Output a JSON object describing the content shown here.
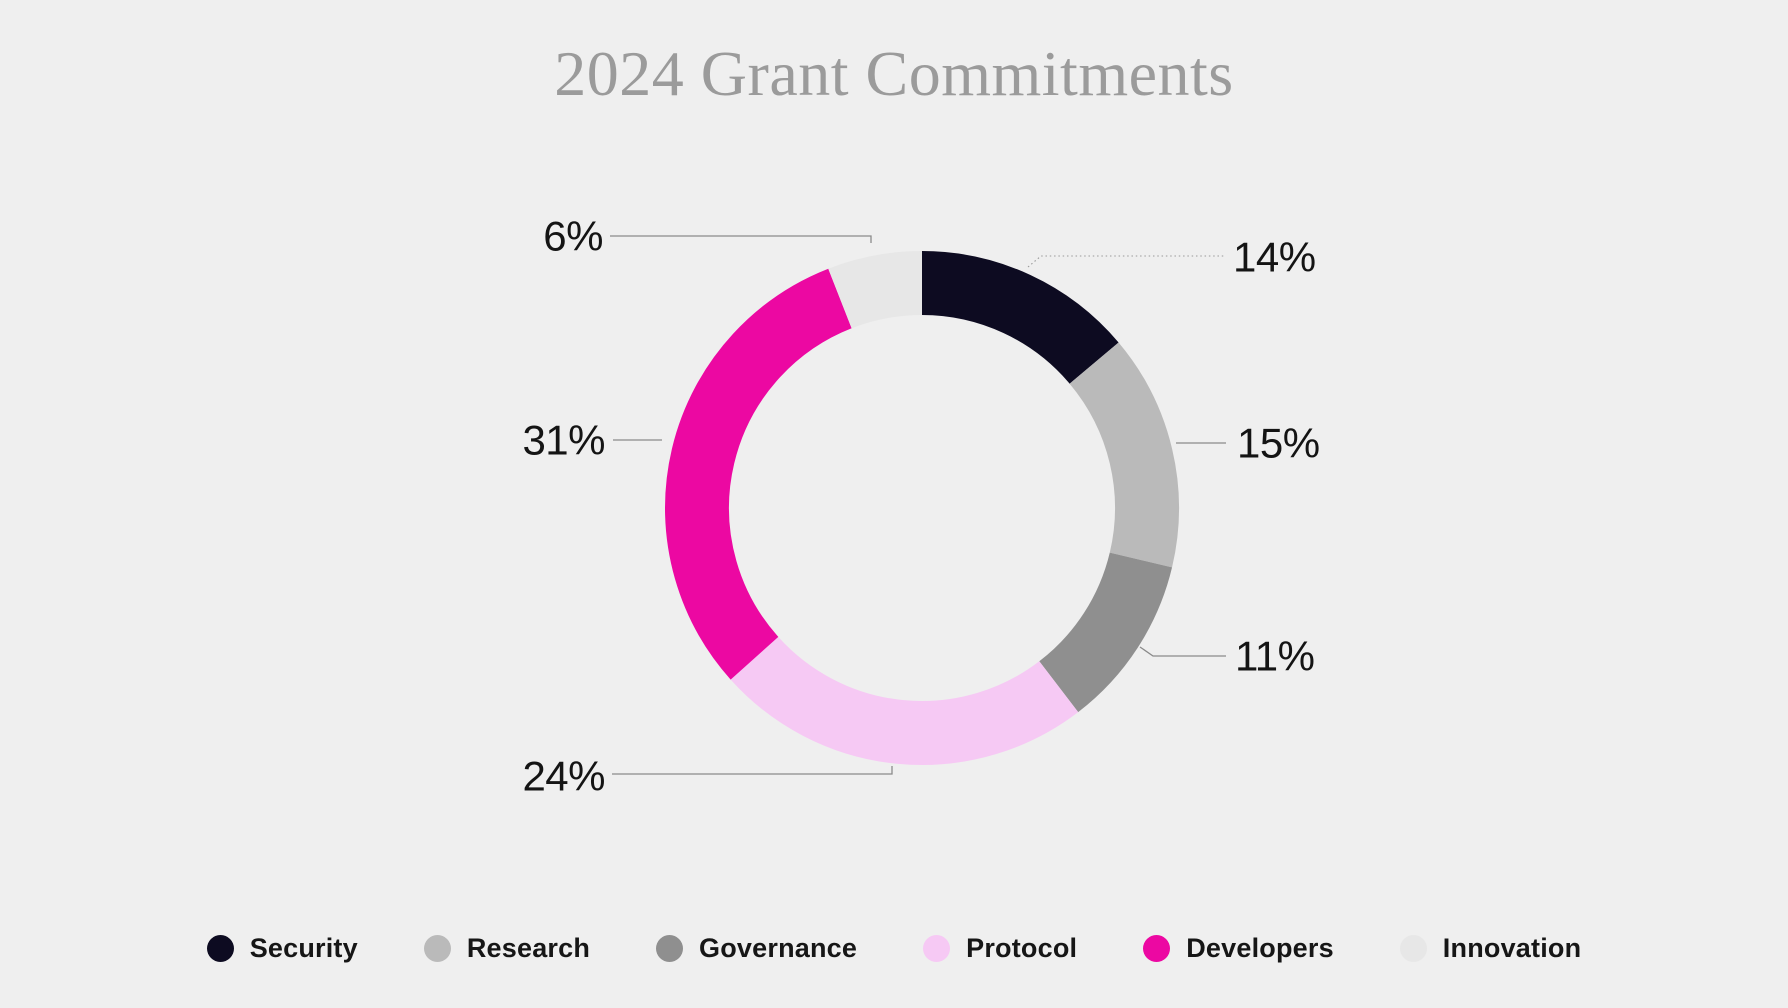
{
  "chart_data": {
    "type": "donut",
    "title": "2024 Grant Commitments",
    "labels_format": "percent",
    "legend_position": "bottom",
    "direction": "clockwise",
    "start_angle_deg": 0,
    "donut_hole_ratio": 0.75,
    "background_color": "#efefef",
    "title_color": "#9b9b9b",
    "label_color": "#141414",
    "leader_line_color": "#8a8a8a",
    "series": [
      {
        "name": "Security",
        "value": 14,
        "percent_label": "14%",
        "color": "#0d0b21"
      },
      {
        "name": "Research",
        "value": 15,
        "percent_label": "15%",
        "color": "#bababa"
      },
      {
        "name": "Governance",
        "value": 11,
        "percent_label": "11%",
        "color": "#8f8f8f"
      },
      {
        "name": "Protocol",
        "value": 24,
        "percent_label": "24%",
        "color": "#f6c9f4"
      },
      {
        "name": "Developers",
        "value": 31,
        "percent_label": "31%",
        "color": "#ec08a2"
      },
      {
        "name": "Innovation",
        "value": 6,
        "percent_label": "6%",
        "color": "#e7e7e7"
      }
    ]
  }
}
